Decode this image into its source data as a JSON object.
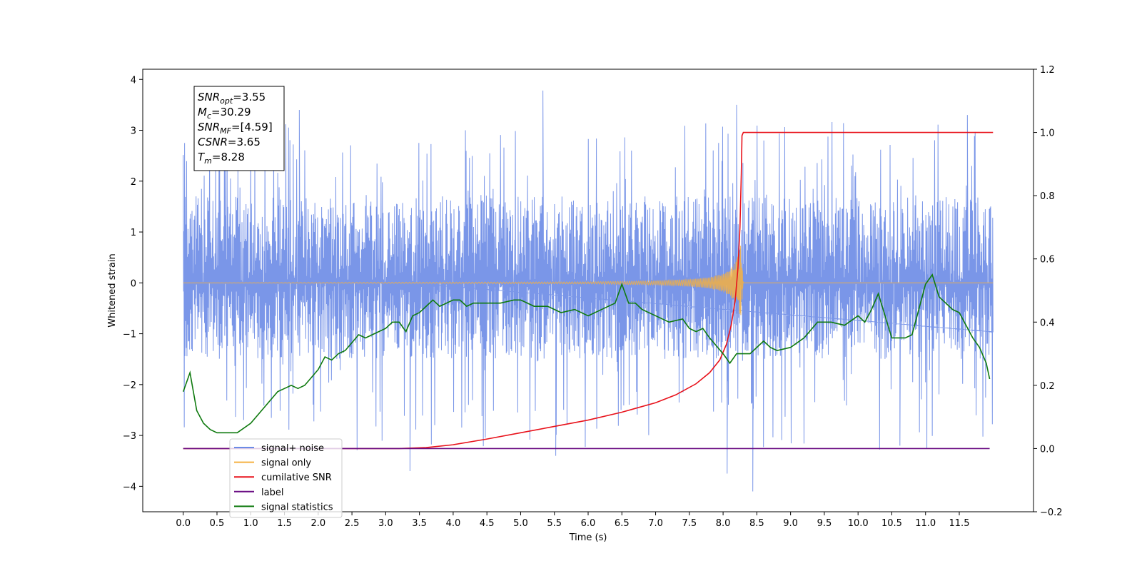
{
  "chart_data": {
    "type": "line",
    "xlabel": "Time (s)",
    "ylabel": "Whitened strain",
    "xlim": [
      -0.6,
      12.6
    ],
    "ylim": [
      -4.5,
      4.2
    ],
    "y2lim": [
      -0.2,
      1.2
    ],
    "x_ticks": [
      "0.0",
      "0.5",
      "1.0",
      "1.5",
      "2.0",
      "2.5",
      "3.0",
      "3.5",
      "4.0",
      "4.5",
      "5.0",
      "5.5",
      "6.0",
      "6.5",
      "7.0",
      "7.5",
      "8.0",
      "8.5",
      "9.0",
      "9.5",
      "10.0",
      "10.5",
      "11.0",
      "11.5"
    ],
    "y_ticks": [
      "4",
      "3",
      "2",
      "1",
      "0",
      "−1",
      "−2",
      "−3",
      "−4"
    ],
    "y2_ticks": [
      "1.2",
      "1.0",
      "0.8",
      "0.6",
      "0.4",
      "0.2",
      "0.0",
      "−0.2"
    ],
    "grid": false,
    "legend_position": "lower-left",
    "annotation": {
      "lines": [
        {
          "var": "SNR",
          "sub": "opt",
          "value": "=3.55"
        },
        {
          "var": "M",
          "sub": "c",
          "value": "=30.29"
        },
        {
          "var": "SNR",
          "sub": "MF",
          "value": "=[4.59]"
        },
        {
          "var": "CSNR",
          "sub": "",
          "value": "=3.65"
        },
        {
          "var": "T",
          "sub": "m",
          "value": "=8.28"
        }
      ]
    },
    "series": [
      {
        "name": "signal+ noise",
        "color": "#6b8be6",
        "axis": "left",
        "kind": "noise",
        "x_range": [
          0,
          12
        ],
        "typical_range": [
          -1.5,
          1.7
        ],
        "extreme_range": [
          -4.1,
          3.8
        ],
        "spikes": [
          {
            "x": 3.36,
            "y": -3.7
          },
          {
            "x": 5.52,
            "y": -3.4
          },
          {
            "x": 5.33,
            "y": 3.78
          },
          {
            "x": 8.06,
            "y": -3.75
          },
          {
            "x": 8.44,
            "y": -4.1
          },
          {
            "x": 8.2,
            "y": 3.5
          },
          {
            "x": 11.62,
            "y": 3.3
          },
          {
            "x": 1.72,
            "y": 3.4
          },
          {
            "x": 10.62,
            "y": -3.2
          }
        ]
      },
      {
        "name": "signal only",
        "color": "#f5b041",
        "axis": "left",
        "kind": "chirp",
        "x": [
          0,
          6.0,
          7.0,
          7.5,
          7.8,
          8.0,
          8.1,
          8.2,
          8.25,
          8.28,
          8.3,
          12.0
        ],
        "envelope": [
          0.0,
          0.02,
          0.04,
          0.07,
          0.11,
          0.18,
          0.25,
          0.45,
          0.7,
          0.8,
          0.0,
          0.0
        ]
      },
      {
        "name": "cumilative SNR",
        "color": "#e8121b",
        "axis": "right",
        "x": [
          0.0,
          3.2,
          3.6,
          4.0,
          4.5,
          5.0,
          5.5,
          6.0,
          6.5,
          7.0,
          7.3,
          7.6,
          7.8,
          7.95,
          8.05,
          8.12,
          8.18,
          8.22,
          8.25,
          8.27,
          8.28,
          8.3,
          12.0
        ],
        "values": [
          0.0,
          0.0,
          0.003,
          0.012,
          0.03,
          0.05,
          0.07,
          0.09,
          0.115,
          0.145,
          0.17,
          0.205,
          0.24,
          0.28,
          0.33,
          0.39,
          0.47,
          0.57,
          0.7,
          0.87,
          0.99,
          1.0,
          1.0
        ]
      },
      {
        "name": "label",
        "color": "#6a0d83",
        "axis": "right",
        "x": [
          0.0,
          11.95
        ],
        "values": [
          0.0,
          0.0
        ]
      },
      {
        "name": "signal statistics",
        "color": "#0f7a0f",
        "axis": "right",
        "x": [
          0.0,
          0.1,
          0.2,
          0.3,
          0.4,
          0.5,
          0.7,
          0.8,
          1.0,
          1.2,
          1.4,
          1.5,
          1.6,
          1.7,
          1.8,
          2.0,
          2.1,
          2.2,
          2.3,
          2.4,
          2.6,
          2.7,
          2.8,
          3.0,
          3.1,
          3.2,
          3.3,
          3.4,
          3.5,
          3.6,
          3.7,
          3.8,
          4.0,
          4.1,
          4.2,
          4.3,
          4.4,
          4.5,
          4.7,
          4.9,
          5.0,
          5.2,
          5.4,
          5.6,
          5.8,
          6.0,
          6.2,
          6.4,
          6.5,
          6.6,
          6.7,
          6.8,
          7.0,
          7.2,
          7.4,
          7.5,
          7.6,
          7.7,
          7.8,
          8.0,
          8.1,
          8.2,
          8.4,
          8.6,
          8.7,
          8.8,
          9.0,
          9.2,
          9.4,
          9.6,
          9.8,
          10.0,
          10.1,
          10.2,
          10.3,
          10.5,
          10.7,
          10.8,
          11.0,
          11.1,
          11.2,
          11.4,
          11.5,
          11.7,
          11.8,
          11.9,
          11.95
        ],
        "values": [
          0.18,
          0.24,
          0.12,
          0.08,
          0.06,
          0.05,
          0.05,
          0.05,
          0.08,
          0.13,
          0.18,
          0.19,
          0.2,
          0.19,
          0.2,
          0.25,
          0.29,
          0.28,
          0.3,
          0.31,
          0.36,
          0.35,
          0.36,
          0.38,
          0.4,
          0.4,
          0.37,
          0.42,
          0.43,
          0.45,
          0.47,
          0.45,
          0.47,
          0.47,
          0.45,
          0.46,
          0.46,
          0.46,
          0.46,
          0.47,
          0.47,
          0.45,
          0.45,
          0.43,
          0.44,
          0.42,
          0.44,
          0.46,
          0.52,
          0.46,
          0.46,
          0.44,
          0.42,
          0.4,
          0.41,
          0.38,
          0.37,
          0.38,
          0.35,
          0.3,
          0.27,
          0.3,
          0.3,
          0.34,
          0.32,
          0.31,
          0.32,
          0.35,
          0.4,
          0.4,
          0.39,
          0.42,
          0.4,
          0.44,
          0.49,
          0.35,
          0.35,
          0.36,
          0.52,
          0.55,
          0.48,
          0.44,
          0.43,
          0.35,
          0.32,
          0.27,
          0.22
        ]
      }
    ]
  },
  "legend_items": [
    {
      "label": "signal+ noise",
      "color": "#6b8be6"
    },
    {
      "label": "signal only",
      "color": "#f5b041"
    },
    {
      "label": "cumilative SNR",
      "color": "#e8121b"
    },
    {
      "label": "label",
      "color": "#6a0d83"
    },
    {
      "label": "signal statistics",
      "color": "#0f7a0f"
    }
  ]
}
